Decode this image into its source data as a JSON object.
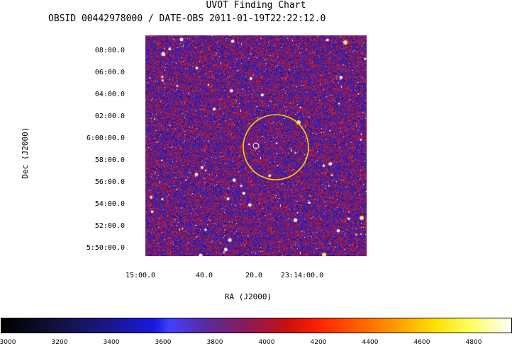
{
  "header": {
    "title": "UVOT Finding Chart",
    "subtitle": "OBSID 00442978000 / DATE-OBS 2011-01-19T22:22:12.0"
  },
  "axes": {
    "xlabel": "RA (J2000)",
    "ylabel": "Dec (J2000)",
    "dec_ticks": [
      "08:00.0",
      "06:00.0",
      "04:00.0",
      "02:00.0",
      "6:00:00.0",
      "58:00.0",
      "56:00.0",
      "54:00.0",
      "52:00.0",
      "5:50:00.0"
    ],
    "ra_ticks": [
      "15:00.0",
      "40.0",
      "20.0",
      "23:14:00.0"
    ]
  },
  "colorbar": {
    "ticks": [
      "3000",
      "3200",
      "3400",
      "3600",
      "3800",
      "4000",
      "4200",
      "4400",
      "4600",
      "4800"
    ]
  },
  "colors": {
    "circle": "#ffd000",
    "background_blue": "#2020c0",
    "background_red": "#d01818"
  }
}
